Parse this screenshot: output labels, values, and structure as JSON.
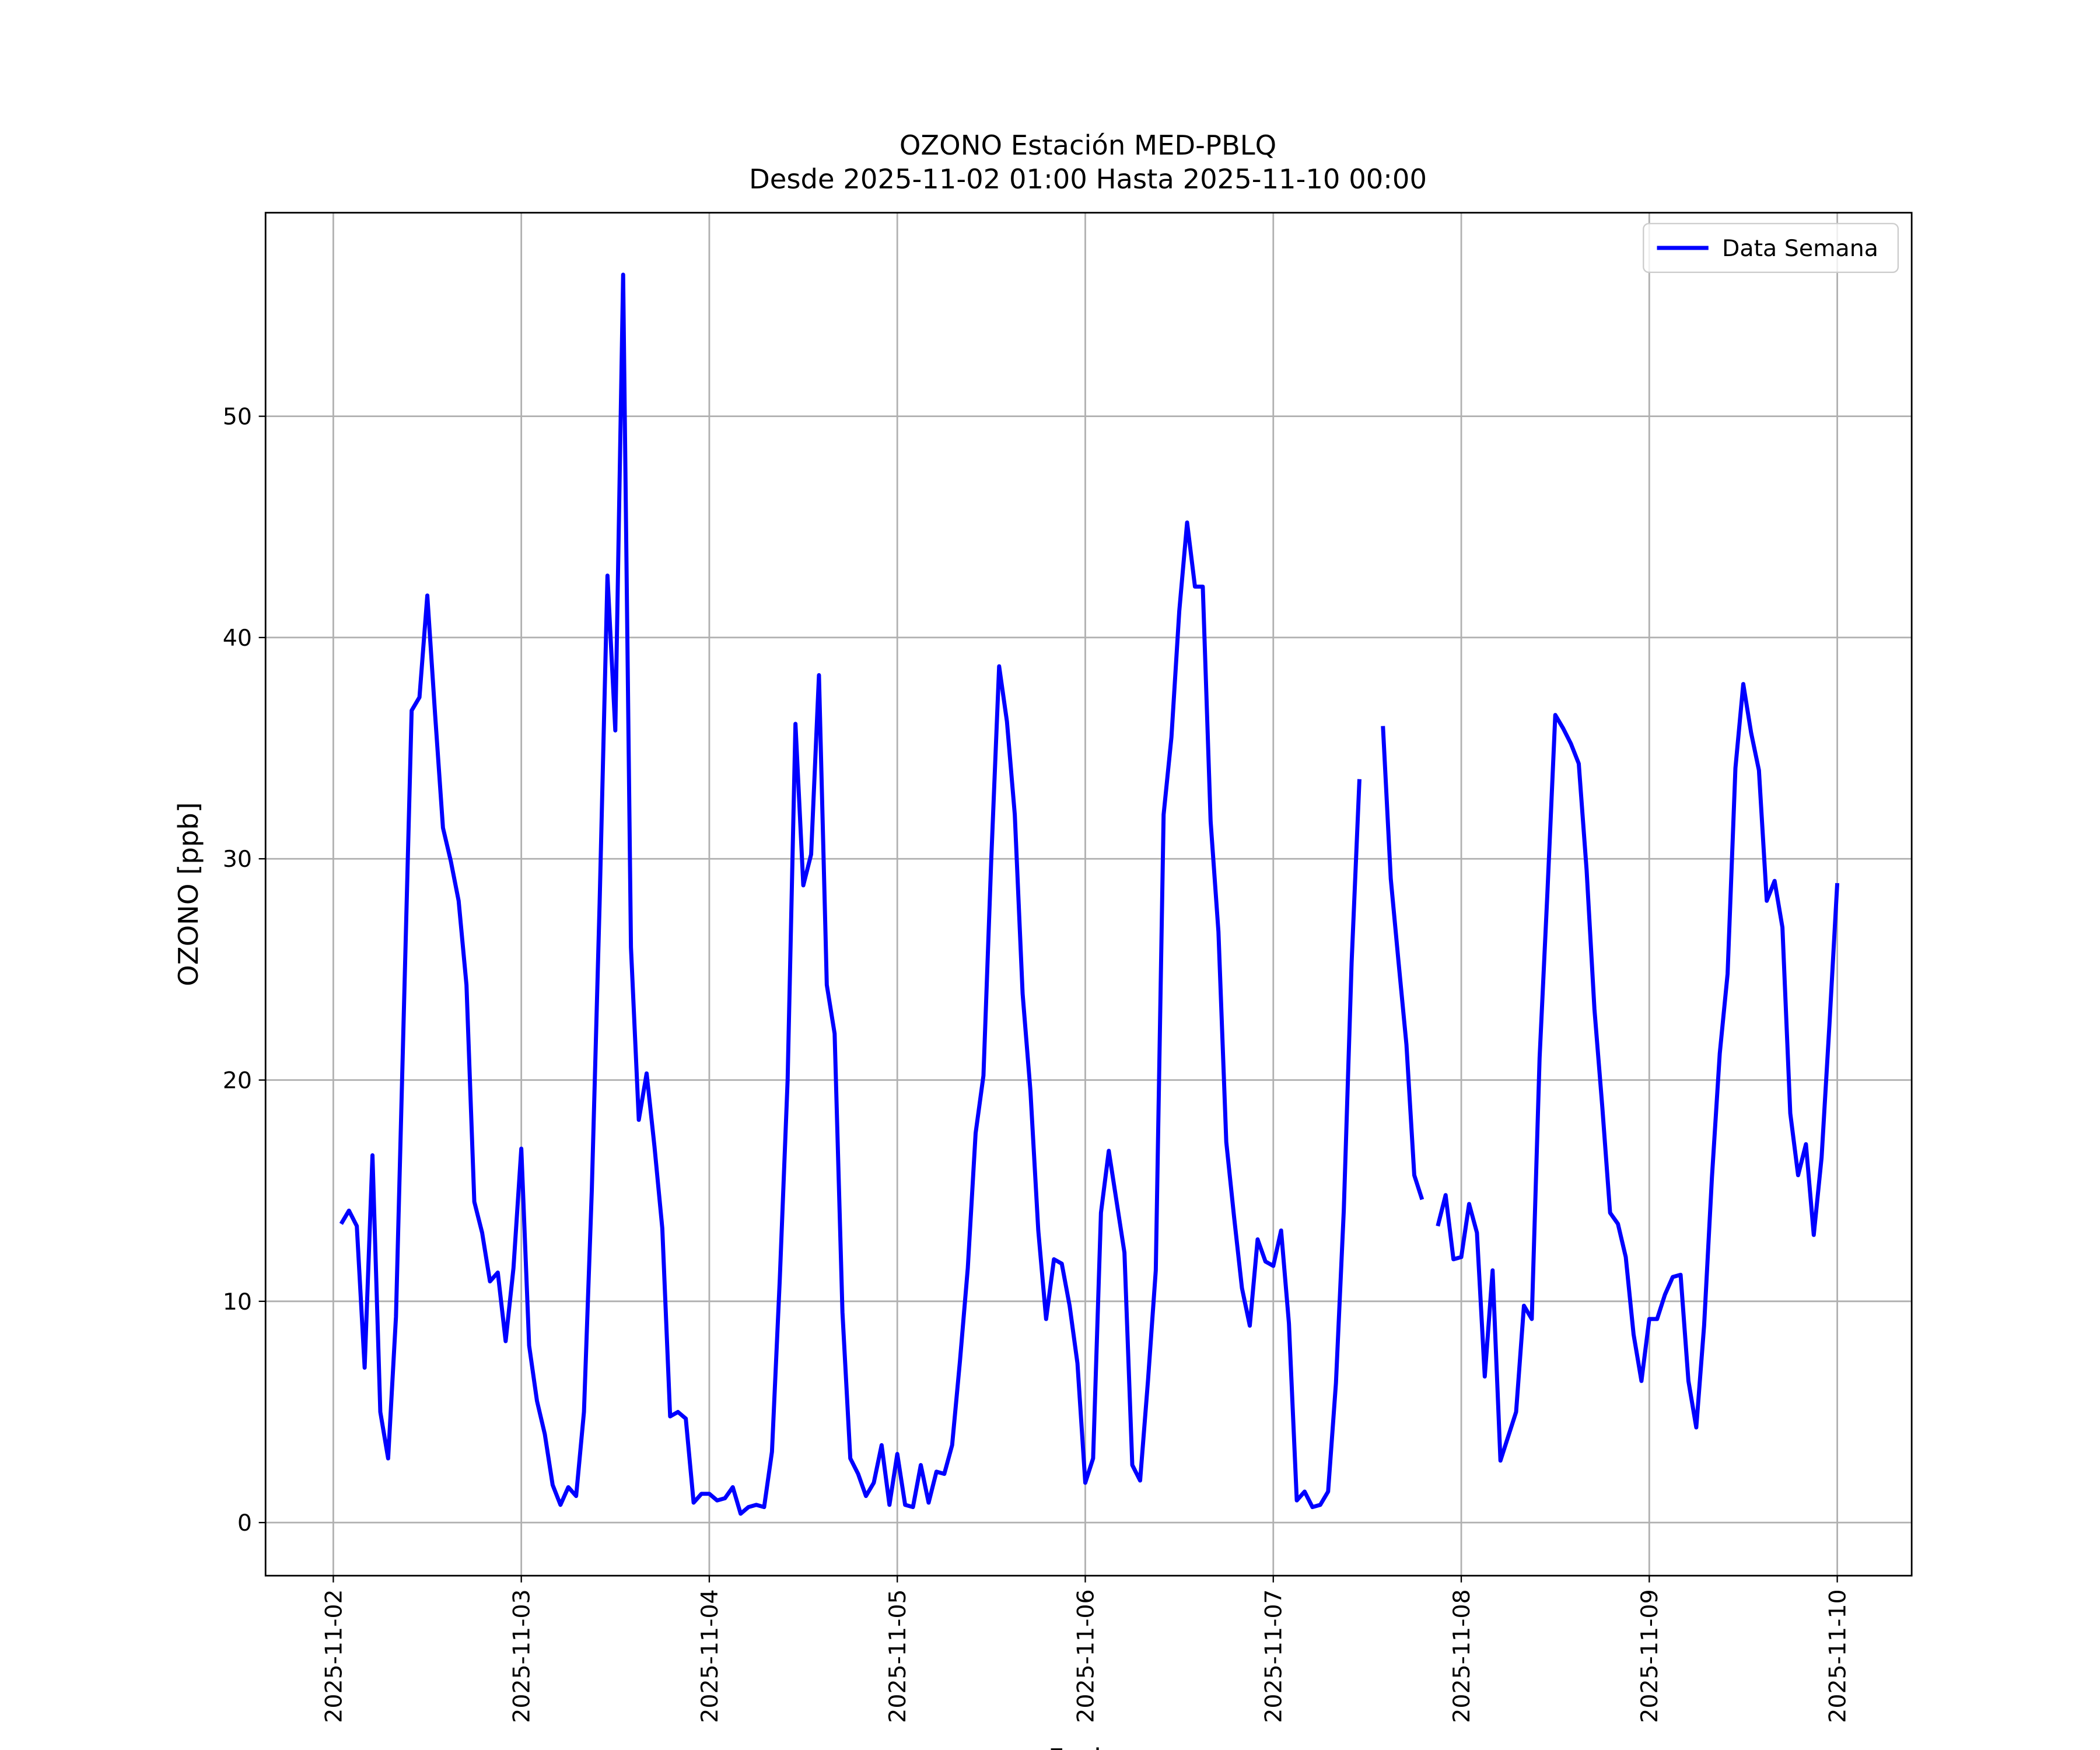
{
  "chart_data": {
    "type": "line",
    "title": "OZONO Estación MED-PBLQ",
    "subtitle": "Desde 2025-11-02 01:00 Hasta 2025-11-10 00:00",
    "xlabel": "Fecha",
    "ylabel": "OZONO [ppb]",
    "x": [
      "2025-11-02 01:00",
      "2025-11-02 02:00",
      "2025-11-02 03:00",
      "2025-11-02 04:00",
      "2025-11-02 05:00",
      "2025-11-02 06:00",
      "2025-11-02 07:00",
      "2025-11-02 08:00",
      "2025-11-02 09:00",
      "2025-11-02 10:00",
      "2025-11-02 11:00",
      "2025-11-02 12:00",
      "2025-11-02 13:00",
      "2025-11-02 14:00",
      "2025-11-02 15:00",
      "2025-11-02 16:00",
      "2025-11-02 17:00",
      "2025-11-02 18:00",
      "2025-11-02 19:00",
      "2025-11-02 20:00",
      "2025-11-02 21:00",
      "2025-11-02 22:00",
      "2025-11-02 23:00",
      "2025-11-03 00:00",
      "2025-11-03 01:00",
      "2025-11-03 02:00",
      "2025-11-03 03:00",
      "2025-11-03 04:00",
      "2025-11-03 05:00",
      "2025-11-03 06:00",
      "2025-11-03 07:00",
      "2025-11-03 08:00",
      "2025-11-03 09:00",
      "2025-11-03 10:00",
      "2025-11-03 11:00",
      "2025-11-03 12:00",
      "2025-11-03 13:00",
      "2025-11-03 14:00",
      "2025-11-03 15:00",
      "2025-11-03 16:00",
      "2025-11-03 17:00",
      "2025-11-03 18:00",
      "2025-11-03 19:00",
      "2025-11-03 20:00",
      "2025-11-03 21:00",
      "2025-11-03 22:00",
      "2025-11-03 23:00",
      "2025-11-04 00:00",
      "2025-11-04 01:00",
      "2025-11-04 02:00",
      "2025-11-04 03:00",
      "2025-11-04 04:00",
      "2025-11-04 05:00",
      "2025-11-04 06:00",
      "2025-11-04 07:00",
      "2025-11-04 08:00",
      "2025-11-04 09:00",
      "2025-11-04 10:00",
      "2025-11-04 11:00",
      "2025-11-04 12:00",
      "2025-11-04 13:00",
      "2025-11-04 14:00",
      "2025-11-04 15:00",
      "2025-11-04 16:00",
      "2025-11-04 17:00",
      "2025-11-04 18:00",
      "2025-11-04 19:00",
      "2025-11-04 20:00",
      "2025-11-04 21:00",
      "2025-11-04 22:00",
      "2025-11-04 23:00",
      "2025-11-05 00:00",
      "2025-11-05 01:00",
      "2025-11-05 02:00",
      "2025-11-05 03:00",
      "2025-11-05 04:00",
      "2025-11-05 05:00",
      "2025-11-05 06:00",
      "2025-11-05 07:00",
      "2025-11-05 08:00",
      "2025-11-05 09:00",
      "2025-11-05 10:00",
      "2025-11-05 11:00",
      "2025-11-05 12:00",
      "2025-11-05 13:00",
      "2025-11-05 14:00",
      "2025-11-05 15:00",
      "2025-11-05 16:00",
      "2025-11-05 17:00",
      "2025-11-05 18:00",
      "2025-11-05 19:00",
      "2025-11-05 20:00",
      "2025-11-05 21:00",
      "2025-11-05 22:00",
      "2025-11-05 23:00",
      "2025-11-06 00:00",
      "2025-11-06 01:00",
      "2025-11-06 02:00",
      "2025-11-06 03:00",
      "2025-11-06 04:00",
      "2025-11-06 05:00",
      "2025-11-06 06:00",
      "2025-11-06 07:00",
      "2025-11-06 08:00",
      "2025-11-06 09:00",
      "2025-11-06 10:00",
      "2025-11-06 11:00",
      "2025-11-06 12:00",
      "2025-11-06 13:00",
      "2025-11-06 14:00",
      "2025-11-06 15:00",
      "2025-11-06 16:00",
      "2025-11-06 17:00",
      "2025-11-06 18:00",
      "2025-11-06 19:00",
      "2025-11-06 20:00",
      "2025-11-06 21:00",
      "2025-11-06 22:00",
      "2025-11-06 23:00",
      "2025-11-07 00:00",
      "2025-11-07 01:00",
      "2025-11-07 02:00",
      "2025-11-07 03:00",
      "2025-11-07 04:00",
      "2025-11-07 05:00",
      "2025-11-07 06:00",
      "2025-11-07 07:00",
      "2025-11-07 08:00",
      "2025-11-07 09:00",
      "2025-11-07 10:00",
      "2025-11-07 11:00",
      "2025-11-07 12:00",
      "2025-11-07 13:00",
      "2025-11-07 14:00",
      "2025-11-07 15:00",
      "2025-11-07 16:00",
      "2025-11-07 17:00",
      "2025-11-07 18:00",
      "2025-11-07 19:00",
      "2025-11-07 20:00",
      "2025-11-07 21:00",
      "2025-11-07 22:00",
      "2025-11-07 23:00",
      "2025-11-08 00:00",
      "2025-11-08 01:00",
      "2025-11-08 02:00",
      "2025-11-08 03:00",
      "2025-11-08 04:00",
      "2025-11-08 05:00",
      "2025-11-08 06:00",
      "2025-11-08 07:00",
      "2025-11-08 08:00",
      "2025-11-08 09:00",
      "2025-11-08 10:00",
      "2025-11-08 11:00",
      "2025-11-08 12:00",
      "2025-11-08 13:00",
      "2025-11-08 14:00",
      "2025-11-08 15:00",
      "2025-11-08 16:00",
      "2025-11-08 17:00",
      "2025-11-08 18:00",
      "2025-11-08 19:00",
      "2025-11-08 20:00",
      "2025-11-08 21:00",
      "2025-11-08 22:00",
      "2025-11-08 23:00",
      "2025-11-09 00:00",
      "2025-11-09 01:00",
      "2025-11-09 02:00",
      "2025-11-09 03:00",
      "2025-11-09 04:00",
      "2025-11-09 05:00",
      "2025-11-09 06:00",
      "2025-11-09 07:00",
      "2025-11-09 08:00",
      "2025-11-09 09:00",
      "2025-11-09 10:00",
      "2025-11-09 11:00",
      "2025-11-09 12:00",
      "2025-11-09 13:00",
      "2025-11-09 14:00",
      "2025-11-09 15:00",
      "2025-11-09 16:00",
      "2025-11-09 17:00",
      "2025-11-09 18:00",
      "2025-11-09 19:00",
      "2025-11-09 20:00",
      "2025-11-09 21:00",
      "2025-11-09 22:00",
      "2025-11-09 23:00",
      "2025-11-10 00:00"
    ],
    "series": [
      {
        "name": "Data Semana",
        "color": "#0000ff",
        "values": [
          13.5,
          14.1,
          13.4,
          7.0,
          16.6,
          5.0,
          2.9,
          9.3,
          23,
          36.7,
          37.3,
          41.9,
          36.5,
          31.4,
          29.9,
          28.1,
          24.3,
          14.5,
          13.1,
          10.9,
          11.3,
          8.2,
          11.5,
          16.9,
          8.0,
          5.5,
          4.0,
          1.7,
          0.8,
          1.6,
          1.2,
          5.0,
          15,
          28,
          42.8,
          35.8,
          56.4,
          26,
          18.2,
          20.3,
          17,
          13.3,
          4.8,
          5.0,
          4.7,
          0.9,
          1.3,
          1.3,
          1.0,
          1.1,
          1.6,
          0.4,
          0.7,
          0.8,
          0.7,
          3.2,
          11,
          20,
          36.1,
          28.8,
          30.2,
          38.3,
          24.3,
          22.1,
          9.5,
          2.9,
          2.2,
          1.2,
          1.8,
          3.5,
          0.8,
          3.1,
          0.8,
          0.7,
          2.6,
          0.9,
          2.3,
          2.2,
          3.5,
          7.3,
          11.5,
          17.6,
          20.2,
          30,
          38.7,
          36.2,
          32,
          23.9,
          19.5,
          13.2,
          9.2,
          11.9,
          11.7,
          9.8,
          7.2,
          1.8,
          2.9,
          14,
          16.8,
          14.5,
          12.2,
          2.6,
          1.9,
          6.4,
          11.4,
          32,
          35.5,
          41.2,
          45.2,
          42.3,
          42.3,
          31.7,
          26.7,
          17.2,
          13.8,
          10.6,
          8.9,
          12.8,
          11.8,
          11.6,
          13.2,
          9,
          1.0,
          1.4,
          0.7,
          0.8,
          1.4,
          6.3,
          14.1,
          25.3,
          33.6,
          null,
          null,
          36.0,
          29.1,
          25.3,
          21.6,
          15.7,
          14.6,
          null,
          13.4,
          14.8,
          11.9,
          12.0,
          14.4,
          13.1,
          6.6,
          11.4,
          2.8,
          3.9,
          5.0,
          9.8,
          9.2,
          21,
          28.5,
          36.5,
          35.9,
          35.2,
          34.3,
          29.5,
          23.2,
          18.8,
          14.0,
          13.5,
          12.0,
          8.5,
          6.4,
          9.2,
          9.2,
          10.3,
          11.1,
          11.2,
          6.4,
          4.3,
          8.9,
          15.6,
          21.2,
          24.8,
          34.1,
          37.9,
          35.7,
          34.0,
          28.1,
          29.0,
          26.9,
          18.5,
          15.7,
          17.1,
          13.0,
          16.5,
          22.5,
          28.9
        ]
      }
    ],
    "xlim": [
      "2025-11-01 15:21",
      "2025-11-10 09:30"
    ],
    "xticks": [
      "2025-11-02",
      "2025-11-03",
      "2025-11-04",
      "2025-11-05",
      "2025-11-06",
      "2025-11-07",
      "2025-11-08",
      "2025-11-09",
      "2025-11-10"
    ],
    "ylim": [
      -2.4,
      59.2
    ],
    "yticks": [
      0,
      10,
      20,
      30,
      40,
      50
    ],
    "grid": true,
    "legend": "upper right"
  }
}
